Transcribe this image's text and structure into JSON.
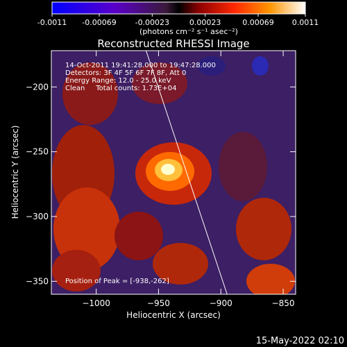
{
  "chart_data": {
    "type": "heatmap",
    "title": "Reconstructed RHESSI Image",
    "xlabel": "Heliocentric X (arcsec)",
    "ylabel": "Heliocentric Y (arcsec)",
    "xlim": [
      -1036,
      -840
    ],
    "ylim": [
      -360,
      -172
    ],
    "x_ticks": [
      -1000,
      -950,
      -900,
      -850
    ],
    "x_tick_labels": [
      "−1000",
      "−950",
      "−900",
      "−850"
    ],
    "y_ticks": [
      -200,
      -250,
      -300,
      -350
    ],
    "y_tick_labels": [
      "−200",
      "−250",
      "−300",
      "−350"
    ],
    "colorbar": {
      "ticks": [
        -0.0011,
        -0.00069,
        -0.00023,
        0.00023,
        0.00069,
        0.0011
      ],
      "tick_labels": [
        "-0.0011",
        "-0.00069",
        "-0.00023",
        "0.00023",
        "0.00069",
        "0.0011"
      ],
      "unit_label": "(photons cm⁻² s⁻¹ asec⁻²)",
      "range": [
        -0.0011,
        0.0011
      ]
    },
    "annotations": [
      "14-Oct-2011 19:41:28.000 to 19:47:28.000",
      "Detectors: 3F 4F 5F 6F 7F 8F, Att 0",
      "Energy Range: 12.0 - 25.0 keV",
      "Clean     Total counts: 1.73E+04"
    ],
    "peak_label": "Position of Peak = [-938,-262]",
    "peak": {
      "x": -938,
      "y": -262,
      "value": 0.0011
    },
    "limb": [
      [
        -960,
        -172
      ],
      [
        -895,
        -360
      ]
    ],
    "grid": false,
    "timestamp": "15-May-2022 02:10"
  }
}
